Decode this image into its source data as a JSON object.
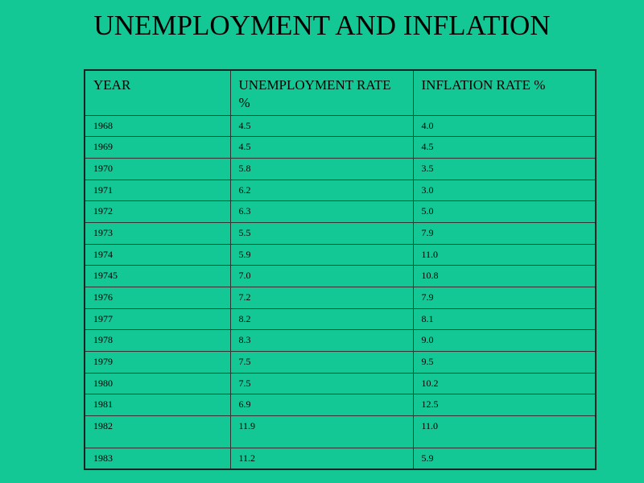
{
  "title": "UNEMPLOYMENT AND INFLATION",
  "table": {
    "header": [
      "YEAR",
      "UNEMPLOYMENT RATE %",
      "INFLATION RATE %"
    ],
    "rows": [
      [
        "1968",
        "4.5",
        "4.0"
      ],
      [
        "1969",
        "4.5",
        "4.5"
      ],
      [
        "1970",
        "5.8",
        "3.5"
      ],
      [
        "1971",
        "6.2",
        "3.0"
      ],
      [
        "1972",
        "6.3",
        "5.0"
      ],
      [
        "1973",
        "5.5",
        "7.9"
      ],
      [
        "1974",
        "5.9",
        "11.0"
      ],
      [
        "19745",
        "7.0",
        "10.8"
      ],
      [
        "1976",
        "7.2",
        "7.9"
      ],
      [
        "1977",
        "8.2",
        "8.1"
      ],
      [
        "1978",
        "8.3",
        "9.0"
      ],
      [
        "1979",
        "7.5",
        "9.5"
      ],
      [
        "1980",
        "7.5",
        "10.2"
      ],
      [
        "1981",
        "6.9",
        "12.5"
      ],
      [
        "1982",
        "11.9",
        "11.0"
      ],
      [
        "1983",
        "11.2",
        "5.9"
      ]
    ]
  }
}
